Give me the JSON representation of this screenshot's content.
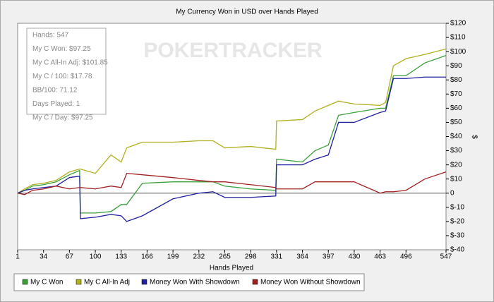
{
  "chart_data": {
    "type": "line",
    "title": "My Currency Won in USD over Hands Played",
    "x_label": "Hands Played",
    "y_label": "$",
    "watermark": "POKERTRACKER",
    "stats": [
      "Hands: 547",
      "My C Won: $97.25",
      "My C All-In Adj: $101.85",
      "My C / 100: $17.78",
      "BB/100: 71.12",
      "Days Played: 1",
      "My C / Day: $97.25"
    ],
    "x": [
      1,
      10,
      20,
      34,
      50,
      67,
      80,
      81,
      100,
      120,
      133,
      140,
      160,
      199,
      232,
      250,
      265,
      298,
      330,
      331,
      364,
      380,
      397,
      410,
      430,
      463,
      470,
      480,
      496,
      520,
      547
    ],
    "xlim": [
      1,
      547
    ],
    "xticks": [
      1,
      34,
      67,
      100,
      133,
      166,
      199,
      232,
      265,
      298,
      331,
      364,
      397,
      430,
      463,
      496,
      547
    ],
    "ylim": [
      -40,
      120
    ],
    "yticks": [
      {
        "value": -40,
        "label": "$-40"
      },
      {
        "value": -30,
        "label": "$-30"
      },
      {
        "value": -20,
        "label": "$-20"
      },
      {
        "value": -10,
        "label": "$-10"
      },
      {
        "value": 0,
        "label": "0"
      },
      {
        "value": 10,
        "label": "$10"
      },
      {
        "value": 20,
        "label": "$20"
      },
      {
        "value": 30,
        "label": "$30"
      },
      {
        "value": 40,
        "label": "$40"
      },
      {
        "value": 50,
        "label": "$50"
      },
      {
        "value": 60,
        "label": "$60"
      },
      {
        "value": 70,
        "label": "$70"
      },
      {
        "value": 80,
        "label": "$80"
      },
      {
        "value": 90,
        "label": "$90"
      },
      {
        "value": 100,
        "label": "$100"
      },
      {
        "value": 110,
        "label": "$110"
      },
      {
        "value": 120,
        "label": "$120"
      }
    ],
    "series": [
      {
        "name": "My C Won",
        "color": "#3a9e3a",
        "values": [
          0,
          2,
          5,
          6,
          8,
          13,
          16,
          -14,
          -14,
          -13,
          -8,
          -8,
          7,
          8,
          8,
          8,
          5,
          3,
          2,
          24,
          22,
          30,
          34,
          55,
          57,
          60,
          60,
          83,
          83,
          92,
          97.25
        ]
      },
      {
        "name": "My C All-In Adj",
        "color": "#b0b020",
        "values": [
          0,
          3,
          6,
          7,
          9,
          15,
          17,
          17,
          14,
          27,
          22,
          32,
          36,
          36,
          37,
          37,
          32,
          33,
          31,
          51,
          52,
          58,
          62,
          65,
          63,
          62,
          64,
          90,
          95,
          98,
          101.85
        ]
      },
      {
        "name": "Money Won With Showdown",
        "color": "#2020a0",
        "values": [
          0,
          2,
          3,
          4,
          5,
          11,
          12,
          -18,
          -17,
          -15,
          -16,
          -20,
          -16,
          -4,
          0,
          1,
          -3,
          -3,
          -2,
          20,
          20,
          24,
          27,
          50,
          50,
          57,
          58,
          81,
          81,
          82,
          82
        ]
      },
      {
        "name": "Money Won Without Showdown",
        "color": "#a02020",
        "values": [
          0,
          -1,
          2,
          3,
          5,
          3,
          4,
          4,
          3,
          5,
          4,
          14,
          13,
          11,
          9,
          8,
          8,
          6,
          4,
          3,
          3,
          8,
          8,
          8,
          8,
          0,
          1,
          1,
          2,
          10,
          15
        ]
      }
    ]
  }
}
